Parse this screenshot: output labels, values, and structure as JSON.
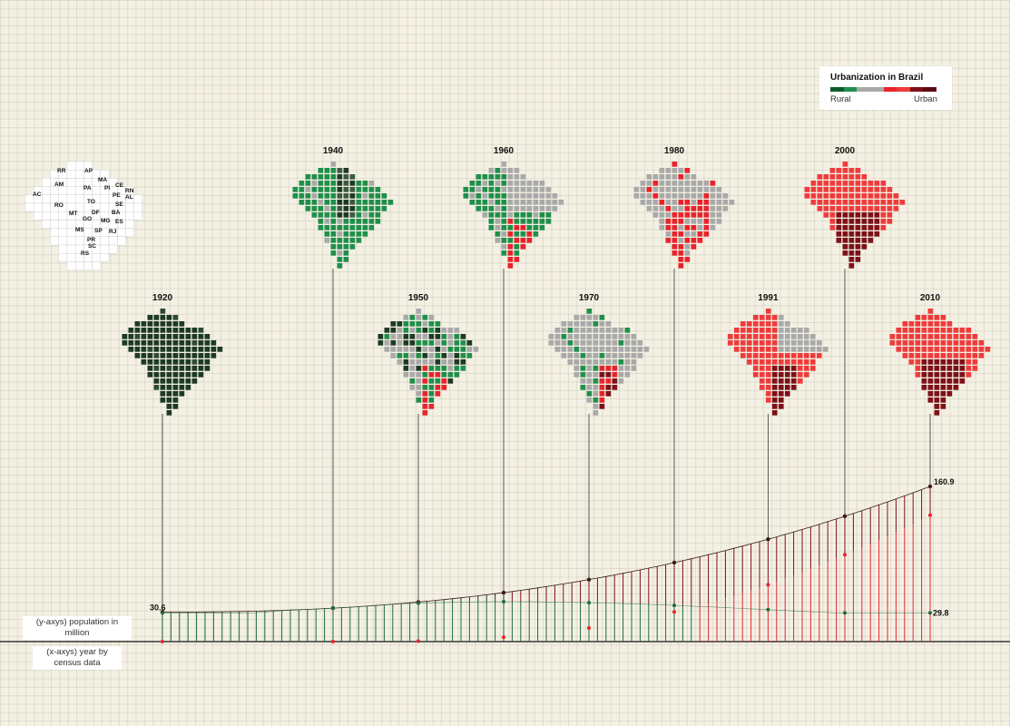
{
  "legend": {
    "title": "Urbanization in Brazil",
    "rural_label": "Rural",
    "urban_label": "Urban",
    "scale_colors": [
      "#0c5c2c",
      "#1f8f4a",
      "#a9a9a9",
      "#a9a9a9",
      "#e8232c",
      "#ef3b3b",
      "#7d1018",
      "#5a0b10"
    ]
  },
  "axis_notes": {
    "y": "(y-axys) population in million",
    "x": "(x-axys) year by census data"
  },
  "state_codes": [
    "RR",
    "AP",
    "MA",
    "AM",
    "PA",
    "PI",
    "CE",
    "RN",
    "AC",
    "PE",
    "AL",
    "RO",
    "TO",
    "SE",
    "BA",
    "MT",
    "DF",
    "GO",
    "MG",
    "ES",
    "MS",
    "SP",
    "RJ",
    "PR",
    "SC",
    "RS"
  ],
  "chart_data": {
    "type": "line",
    "x_range": [
      1920,
      2010
    ],
    "census_years": [
      1920,
      1940,
      1950,
      1960,
      1970,
      1980,
      1991,
      2000,
      2010
    ],
    "total_population_start": 30.6,
    "total_population_end": 160.9,
    "rural_population_end": 29.8,
    "label_start": "30.6",
    "label_total_end": "160.9",
    "label_rural_end": "29.8",
    "map_labels": [
      "1920",
      "1940",
      "1950",
      "1960",
      "1970",
      "1980",
      "1991",
      "2000",
      "2010"
    ],
    "map_dominant_colors": [
      "#1c3a25",
      "#1f8f4a",
      "#a9a9a9",
      "#1f8f4a",
      "#a9a9a9",
      "#a9a9a9",
      "#ef3b3b",
      "#ef3b3b",
      "#ef3b3b"
    ],
    "colors": {
      "rural": "#1f6b3a",
      "urban": "#e8232c",
      "dark_urban": "#7d1018",
      "neutral": "#a9a9a9",
      "early": "#1c3a25"
    }
  }
}
